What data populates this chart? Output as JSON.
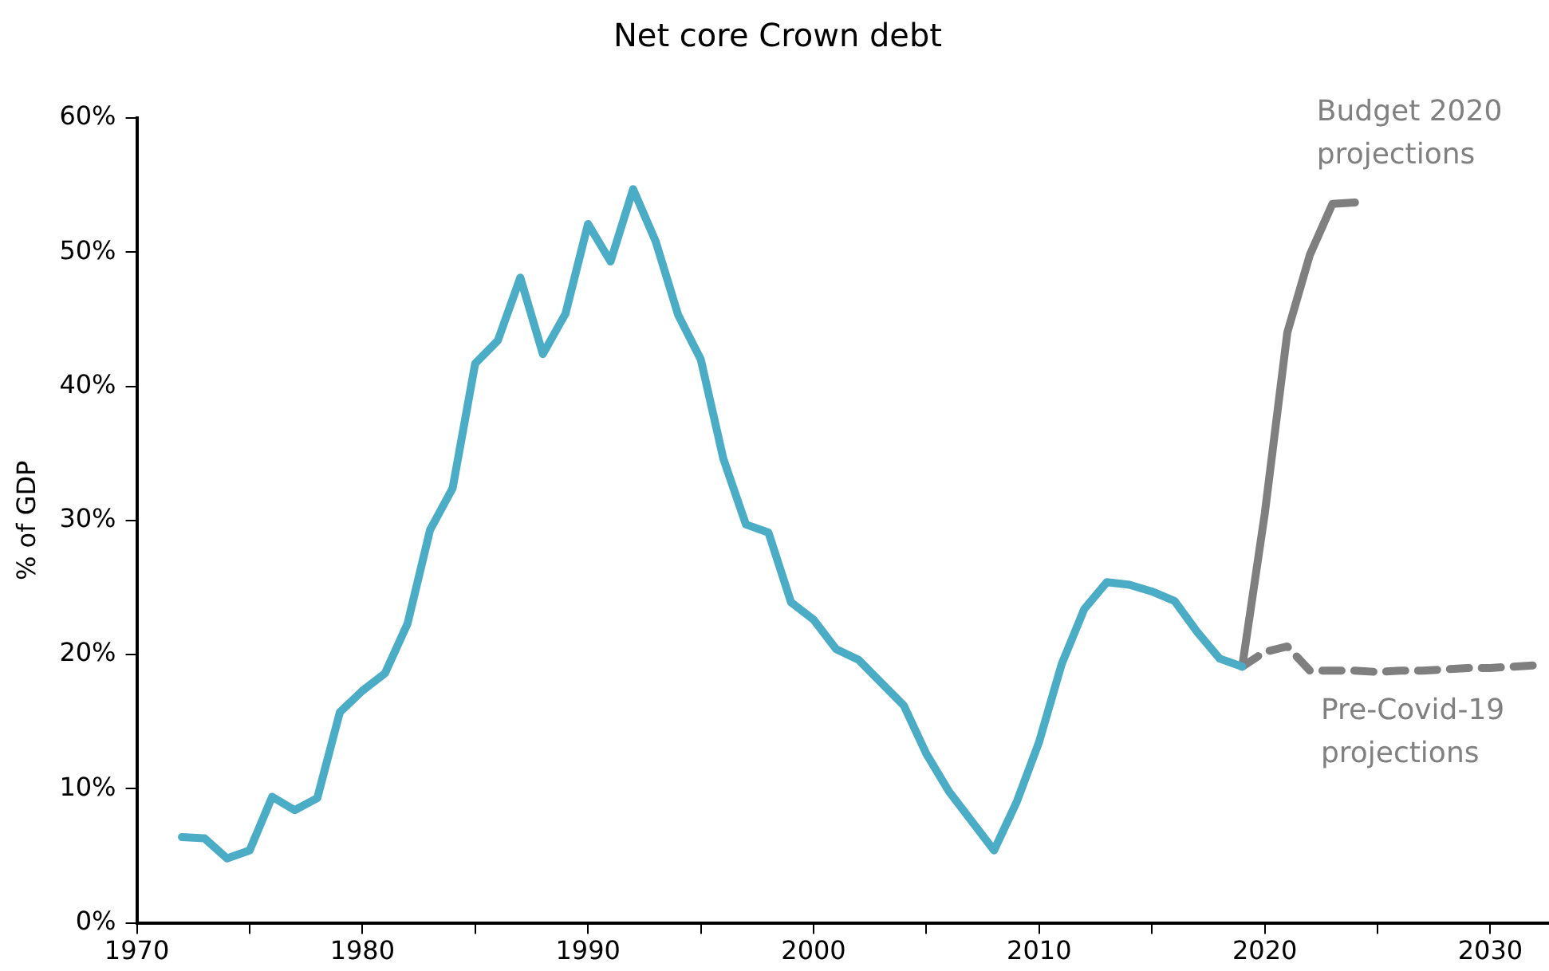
{
  "chart_data": {
    "type": "line",
    "title": "Net core Crown debt",
    "ylabel": "% of GDP",
    "xlim": [
      1970,
      2032.6
    ],
    "xticks": [
      1970,
      {
        "value": 1975,
        "label": null
      },
      1980,
      {
        "value": 1985,
        "label": null
      },
      1990,
      {
        "value": 1995,
        "label": null
      },
      2000,
      {
        "value": 2005,
        "label": null
      },
      2010,
      {
        "value": 2015,
        "label": null
      },
      2020,
      {
        "value": 2025,
        "label": null
      },
      2030
    ],
    "ylim": [
      0,
      60
    ],
    "yticks": [
      {
        "value": 0,
        "label": "0%"
      },
      {
        "value": 10,
        "label": "10%"
      },
      {
        "value": 20,
        "label": "20%"
      },
      {
        "value": 30,
        "label": "30%"
      },
      {
        "value": 40,
        "label": "40%"
      },
      {
        "value": 50,
        "label": "50%"
      },
      {
        "value": 60,
        "label": "60%"
      }
    ],
    "grid": false,
    "legend": false,
    "marker": "none",
    "series": [
      {
        "color": "#4bacc6",
        "line_style": "solid",
        "x": [
          1972,
          1973,
          1974,
          1975,
          1976,
          1977,
          1978,
          1979,
          1980,
          1981,
          1982,
          1983,
          1984,
          1985,
          1986,
          1987,
          1988,
          1989,
          1990,
          1991,
          1992,
          1993,
          1994,
          1995,
          1996,
          1997,
          1998,
          1999,
          2000,
          2001,
          2002,
          2003,
          2004,
          2005,
          2006,
          2007,
          2008,
          2009,
          2010,
          2011,
          2012,
          2013,
          2014,
          2015,
          2016,
          2017,
          2018,
          2019
        ],
        "values": [
          6.4,
          6.3,
          4.8,
          5.4,
          9.4,
          8.4,
          9.3,
          15.7,
          17.3,
          18.6,
          22.3,
          29.3,
          32.4,
          41.7,
          43.4,
          48.1,
          42.4,
          45.4,
          52.1,
          49.3,
          54.7,
          50.8,
          45.3,
          42.0,
          34.6,
          29.7,
          29.1,
          23.9,
          22.6,
          20.4,
          19.6,
          17.9,
          16.2,
          12.6,
          9.8,
          7.6,
          5.4,
          9.0,
          13.5,
          19.3,
          23.4,
          25.4,
          25.2,
          24.7,
          24.0,
          21.7,
          19.7,
          19.1
        ]
      },
      {
        "name": "Budget 2020 projections",
        "color": "#7f7f7f",
        "line_style": "solid",
        "x": [
          2019,
          2020,
          2021,
          2022,
          2023,
          2024
        ],
        "values": [
          19.1,
          30.5,
          44.0,
          49.8,
          53.6,
          53.7
        ]
      },
      {
        "name": "Pre-Covid-19 projections",
        "color": "#7f7f7f",
        "line_style": "dashed",
        "x": [
          2019,
          2020,
          2021,
          2022,
          2023,
          2024,
          2025,
          2026,
          2027,
          2028,
          2029,
          2030,
          2031,
          2032
        ],
        "values": [
          19.1,
          20.2,
          20.6,
          18.8,
          18.8,
          18.8,
          18.7,
          18.8,
          18.8,
          18.9,
          19.0,
          19.0,
          19.1,
          19.2
        ]
      }
    ]
  }
}
